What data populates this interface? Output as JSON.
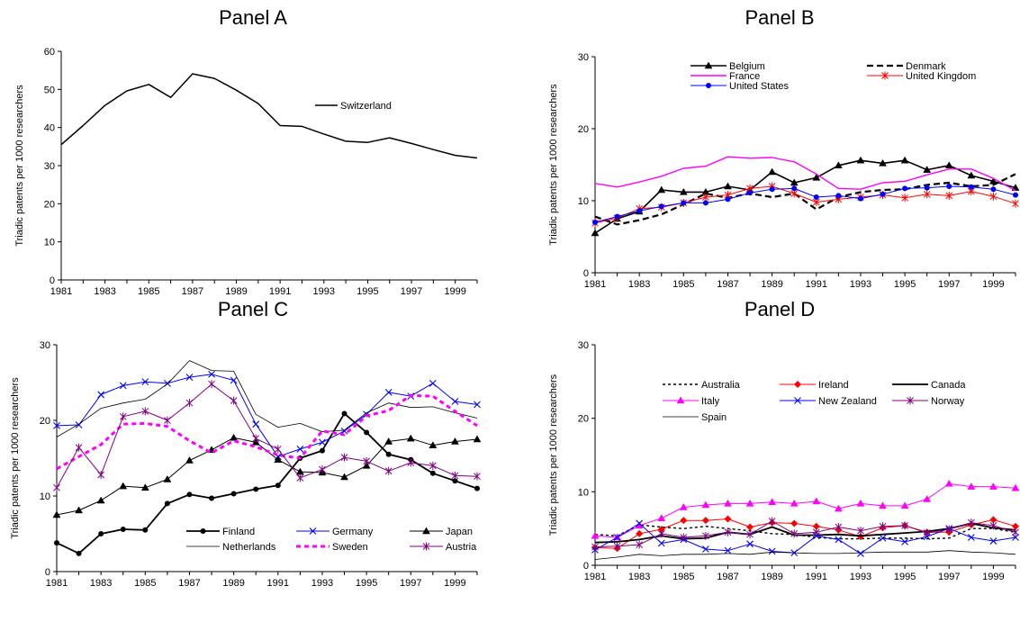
{
  "chart_data": [
    {
      "panel": "A",
      "type": "line",
      "title": "Panel A",
      "xlabel": "",
      "ylabel": "Triadic patents per 1000 researchers",
      "ylim": [
        0,
        60
      ],
      "yticks": [
        0,
        10,
        20,
        30,
        40,
        50,
        60
      ],
      "xlim": [
        1981,
        2000
      ],
      "xticks": [
        1981,
        1983,
        1985,
        1987,
        1989,
        1991,
        1993,
        1995,
        1997,
        1999
      ],
      "grid": false,
      "legend_position": "right",
      "legend_columns": 1,
      "x": [
        1981,
        1982,
        1983,
        1984,
        1985,
        1986,
        1987,
        1988,
        1989,
        1990,
        1991,
        1992,
        1993,
        1994,
        1995,
        1996,
        1997,
        1998,
        1999,
        2000
      ],
      "series": [
        {
          "name": "Switzerland",
          "color": "#000000",
          "width": 1.5,
          "dash": "",
          "marker": "none",
          "values": [
            35.5,
            40.5,
            45.8,
            49.6,
            51.3,
            47.9,
            54.1,
            52.9,
            49.8,
            46.3,
            40.5,
            40.3,
            38.3,
            36.4,
            36.1,
            37.3,
            35.8,
            34.2,
            32.7,
            32.0
          ]
        }
      ]
    },
    {
      "panel": "B",
      "type": "line",
      "title": "Panel B",
      "xlabel": "",
      "ylabel": "Triadic patents per 1000 researchers",
      "ylim": [
        0,
        30
      ],
      "yticks": [
        0,
        10,
        20,
        30
      ],
      "xlim": [
        1981,
        2000
      ],
      "xticks": [
        1981,
        1983,
        1985,
        1987,
        1989,
        1991,
        1993,
        1995,
        1997,
        1999
      ],
      "grid": false,
      "legend_position": "top",
      "legend_columns": 2,
      "x": [
        1981,
        1982,
        1983,
        1984,
        1985,
        1986,
        1987,
        1988,
        1989,
        1990,
        1991,
        1992,
        1993,
        1994,
        1995,
        1996,
        1997,
        1998,
        1999,
        2000
      ],
      "series": [
        {
          "name": "Belgium",
          "color": "#000000",
          "width": 1.6,
          "dash": "",
          "marker": "triangle",
          "values": [
            5.5,
            7.5,
            8.5,
            11.5,
            11.2,
            11.2,
            12.0,
            11.5,
            14.0,
            12.5,
            13.2,
            14.9,
            15.6,
            15.2,
            15.6,
            14.3,
            14.9,
            13.5,
            12.7,
            11.8
          ]
        },
        {
          "name": "Denmark",
          "color": "#000000",
          "width": 2.2,
          "dash": "7,4",
          "marker": "none",
          "values": [
            7.8,
            6.7,
            7.3,
            8.1,
            9.5,
            11.0,
            10.4,
            11.0,
            10.5,
            11.0,
            8.8,
            10.5,
            11.2,
            11.5,
            11.6,
            12.2,
            12.5,
            12.0,
            12.2,
            13.7
          ]
        },
        {
          "name": "France",
          "color": "#ff00ff",
          "width": 1.4,
          "dash": "",
          "marker": "none",
          "values": [
            12.4,
            11.9,
            12.6,
            13.4,
            14.5,
            14.8,
            16.1,
            15.9,
            16.0,
            15.4,
            13.7,
            11.7,
            11.6,
            12.5,
            12.7,
            13.6,
            14.4,
            14.4,
            13.1,
            11.4
          ]
        },
        {
          "name": "United Kingdom",
          "color": "#ff0000",
          "width": 1.0,
          "dash": "",
          "marker": "asterisk",
          "values": [
            6.9,
            7.6,
            8.9,
            9.1,
            9.7,
            10.5,
            10.8,
            11.7,
            12.0,
            11.0,
            9.8,
            10.2,
            10.5,
            10.8,
            10.4,
            10.9,
            10.7,
            11.3,
            10.6,
            9.6
          ]
        },
        {
          "name": "United States",
          "color": "#0000ff",
          "width": 1.0,
          "dash": "",
          "marker": "circle",
          "values": [
            7.0,
            7.8,
            8.6,
            9.2,
            9.7,
            9.7,
            10.2,
            11.1,
            11.6,
            11.7,
            10.5,
            10.7,
            10.3,
            10.9,
            11.7,
            11.8,
            12.0,
            11.9,
            11.6,
            10.8
          ]
        }
      ],
      "legend_order": [
        "Belgium",
        "Denmark",
        "France",
        "United Kingdom",
        "United States"
      ]
    },
    {
      "panel": "C",
      "type": "line",
      "title": "Panel C",
      "xlabel": "",
      "ylabel": "Triadic patents per 1000 researchers",
      "ylim": [
        0,
        30
      ],
      "yticks": [
        0,
        10,
        20,
        30
      ],
      "xlim": [
        1981,
        2000
      ],
      "xticks": [
        1981,
        1983,
        1985,
        1987,
        1989,
        1991,
        1993,
        1995,
        1997,
        1999
      ],
      "grid": false,
      "legend_position": "bottom",
      "legend_columns": 3,
      "x": [
        1981,
        1982,
        1983,
        1984,
        1985,
        1986,
        1987,
        1988,
        1989,
        1990,
        1991,
        1992,
        1993,
        1994,
        1995,
        1996,
        1997,
        1998,
        1999,
        2000
      ],
      "series": [
        {
          "name": "Finland",
          "color": "#000000",
          "width": 1.8,
          "dash": "",
          "marker": "circle",
          "values": [
            3.8,
            2.4,
            5.0,
            5.6,
            5.5,
            9.0,
            10.2,
            9.7,
            10.3,
            10.9,
            11.4,
            15.0,
            16.0,
            20.9,
            18.4,
            15.5,
            14.8,
            13.0,
            12.0,
            11.0
          ]
        },
        {
          "name": "Germany",
          "color": "#0000ff",
          "width": 1.0,
          "dash": "",
          "marker": "x",
          "values": [
            19.3,
            19.4,
            23.4,
            24.6,
            25.1,
            24.9,
            25.7,
            26.1,
            25.3,
            19.5,
            15.2,
            16.2,
            17.1,
            18.6,
            20.8,
            23.7,
            23.2,
            24.9,
            22.5,
            22.1
          ]
        },
        {
          "name": "Japan",
          "color": "#000000",
          "width": 1.0,
          "dash": "",
          "marker": "triangle",
          "values": [
            7.5,
            8.1,
            9.4,
            11.3,
            11.1,
            12.2,
            14.7,
            16.1,
            17.7,
            17.1,
            14.8,
            13.2,
            13.1,
            12.5,
            14.0,
            17.2,
            17.6,
            16.7,
            17.2,
            17.5
          ]
        },
        {
          "name": "Netherlands",
          "color": "#000000",
          "width": 0.8,
          "dash": "",
          "marker": "none",
          "values": [
            17.8,
            19.5,
            21.6,
            22.3,
            22.8,
            24.8,
            27.9,
            26.6,
            26.5,
            20.8,
            19.1,
            19.6,
            18.5,
            18.7,
            21.0,
            22.3,
            21.7,
            21.8,
            21.0,
            20.3
          ]
        },
        {
          "name": "Sweden",
          "color": "#ff00ff",
          "width": 3.0,
          "dash": "5,4",
          "marker": "none",
          "values": [
            13.6,
            15.2,
            16.8,
            19.5,
            19.6,
            19.2,
            17.3,
            15.7,
            17.3,
            16.5,
            15.4,
            15.0,
            18.6,
            18.1,
            20.6,
            21.3,
            23.3,
            23.2,
            21.2,
            19.3
          ]
        },
        {
          "name": "Austria",
          "color": "#800080",
          "width": 1.0,
          "dash": "",
          "marker": "asterisk",
          "values": [
            11.1,
            16.4,
            12.8,
            20.5,
            21.2,
            20.0,
            22.3,
            24.8,
            22.6,
            17.6,
            16.2,
            12.4,
            13.5,
            15.1,
            14.6,
            13.3,
            14.4,
            14.0,
            12.7,
            12.6
          ]
        }
      ],
      "legend_order": [
        "Finland",
        "Germany",
        "Japan",
        "Netherlands",
        "Sweden",
        "Austria"
      ]
    },
    {
      "panel": "D",
      "type": "line",
      "title": "Panel D",
      "xlabel": "",
      "ylabel": "Triadic patents per 1000 researchers",
      "ylim": [
        0,
        30
      ],
      "yticks": [
        0,
        10,
        20,
        30
      ],
      "xlim": [
        1981,
        2000
      ],
      "xticks": [
        1981,
        1983,
        1985,
        1987,
        1989,
        1991,
        1993,
        1995,
        1997,
        1999
      ],
      "grid": false,
      "legend_position": "top",
      "legend_columns": 3,
      "x": [
        1981,
        1982,
        1983,
        1984,
        1985,
        1986,
        1987,
        1988,
        1989,
        1990,
        1991,
        1992,
        1993,
        1994,
        1995,
        1996,
        1997,
        1998,
        1999,
        2000
      ],
      "series": [
        {
          "name": "Australia",
          "color": "#000000",
          "width": 1.4,
          "dash": "3,3",
          "marker": "none",
          "values": [
            4.2,
            4.0,
            5.5,
            5.2,
            5.0,
            5.3,
            5.0,
            4.7,
            4.3,
            4.2,
            3.8,
            3.6,
            3.6,
            3.7,
            3.7,
            3.6,
            3.7,
            5.0,
            5.0,
            4.5
          ]
        },
        {
          "name": "Ireland",
          "color": "#ff0000",
          "width": 1.0,
          "dash": "",
          "marker": "diamond",
          "values": [
            2.4,
            2.3,
            4.3,
            4.9,
            6.1,
            6.1,
            6.3,
            5.2,
            5.8,
            5.7,
            5.3,
            4.8,
            3.9,
            5.1,
            5.4,
            4.5,
            4.5,
            5.5,
            6.2,
            5.3
          ]
        },
        {
          "name": "Canada",
          "color": "#000000",
          "width": 1.8,
          "dash": "",
          "marker": "none",
          "values": [
            3.1,
            3.2,
            3.5,
            4.0,
            3.6,
            3.7,
            4.5,
            4.2,
            5.2,
            4.1,
            4.1,
            4.2,
            4.0,
            4.2,
            4.4,
            4.6,
            5.0,
            5.7,
            5.1,
            4.8
          ]
        },
        {
          "name": "Italy",
          "color": "#ff00ff",
          "width": 1.0,
          "dash": "",
          "marker": "triangle",
          "values": [
            4.0,
            3.8,
            5.4,
            6.4,
            7.9,
            8.2,
            8.4,
            8.4,
            8.6,
            8.4,
            8.7,
            7.7,
            8.4,
            8.1,
            8.1,
            9.0,
            11.1,
            10.7,
            10.7,
            10.5
          ]
        },
        {
          "name": "New Zealand",
          "color": "#0000ff",
          "width": 1.0,
          "dash": "",
          "marker": "x",
          "values": [
            2.1,
            3.8,
            5.7,
            3.0,
            3.5,
            2.2,
            2.0,
            2.9,
            1.9,
            1.7,
            4.0,
            3.5,
            1.6,
            3.7,
            3.2,
            3.9,
            5.0,
            3.8,
            3.3,
            3.8
          ]
        },
        {
          "name": "Norway",
          "color": "#800080",
          "width": 1.0,
          "dash": "",
          "marker": "asterisk",
          "values": [
            2.5,
            2.6,
            2.8,
            4.3,
            3.8,
            4.0,
            4.5,
            4.2,
            6.0,
            4.3,
            4.5,
            5.2,
            4.7,
            5.3,
            5.4,
            4.4,
            4.9,
            5.8,
            5.4,
            4.5
          ]
        },
        {
          "name": "Spain",
          "color": "#000000",
          "width": 0.8,
          "dash": "",
          "marker": "none",
          "values": [
            0.8,
            1.1,
            1.5,
            1.3,
            1.5,
            1.5,
            1.6,
            1.5,
            1.8,
            1.7,
            1.6,
            1.6,
            1.7,
            1.8,
            1.8,
            1.8,
            2.0,
            1.8,
            1.7,
            1.5
          ]
        }
      ],
      "legend_order": [
        "Australia",
        "Ireland",
        "Canada",
        "Italy",
        "New Zealand",
        "Norway",
        "Spain"
      ]
    }
  ]
}
